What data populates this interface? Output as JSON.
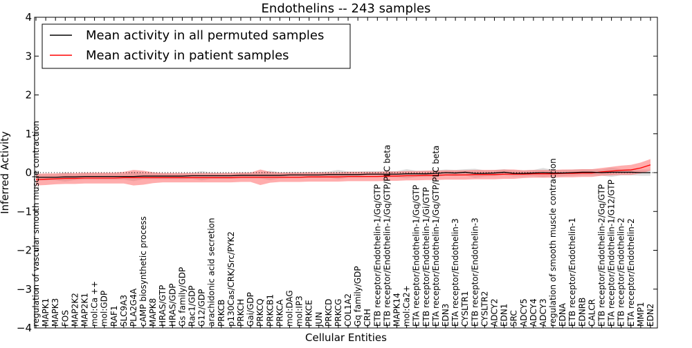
{
  "chart_data": {
    "type": "line",
    "title": "Endothelins -- 243 samples",
    "xlabel": "Cellular Entities",
    "ylabel": "Inferred Activity",
    "ylim": [
      -4,
      4
    ],
    "yticks": [
      "−4",
      "−3",
      "−2",
      "−1",
      "0",
      "1",
      "2",
      "3",
      "4"
    ],
    "grid": false,
    "legend_position": "top-left",
    "reference_line": 0,
    "categories": [
      "regulation of vascular smooth muscle contraction",
      "MAPK1",
      "MAPK3",
      "FOS",
      "MAP2K2",
      "MAP2K1",
      "mol:Ca ++",
      "mol:GDP",
      "RAF1",
      "SLC9A3",
      "PLA2G4A",
      "cAMP biosynthetic process",
      "MAPK8",
      "HRAS/GTP",
      "HRAS/GDP",
      "Gs family/GDP",
      "Rac1/GDP",
      "G12/GDP",
      "arachidonic acid secretion",
      "PRKCB",
      "p130Cas/CRK/Src/PYK2",
      "PRKCH",
      "Gai/GDP",
      "PRKCQ",
      "PRKCB1",
      "PRKCA",
      "mol:DAG",
      "mol:IP3",
      "PRKCE",
      "JUN",
      "PRKCD",
      "PRKCG",
      "COL1A2",
      "Gq family/GDP",
      "CRH",
      "ETB receptor/Endothelin-1/Gq/GTP",
      "ETB receptor/Endothelin-1/Gq/GTP/PLC beta",
      "MAPK14",
      "mol:Ca2+",
      "ETA receptor/Endothelin-1/Gq/GTP",
      "ETB receptor/Endothelin-1/Gi/GTP",
      "ETA receptor/Endothelin-1/Gq/GTP/PLC beta",
      "EDN3",
      "ETA receptor/Endothelin-3",
      "CYSLTR1",
      "ETB receptor/Endothelin-3",
      "CYSLTR2",
      "ADCY2",
      "EDN1",
      "SRC",
      "ADCY5",
      "ADCY4",
      "ADCY3",
      "regulation of smooth muscle contraction",
      "EDNA",
      "ETB receptor/Endothelin-1",
      "EDNRB",
      "CALCR",
      "ETB receptor/Endothelin-2/Gq/GTP",
      "ETA receptor/Endothelin-1/G12/GTP",
      "ETB receptor/Endothelin-2",
      "ETA receptor/Endothelin-2",
      "MMP1",
      "EDN2"
    ],
    "series": [
      {
        "name": "Mean activity in all permuted samples",
        "color": "#000000",
        "values": [
          -0.12,
          -0.12,
          -0.12,
          -0.11,
          -0.11,
          -0.1,
          -0.1,
          -0.1,
          -0.1,
          -0.1,
          -0.1,
          -0.09,
          -0.09,
          -0.09,
          -0.09,
          -0.09,
          -0.08,
          -0.08,
          -0.08,
          -0.08,
          -0.08,
          -0.07,
          -0.07,
          -0.07,
          -0.07,
          -0.07,
          -0.06,
          -0.06,
          -0.06,
          -0.06,
          -0.05,
          -0.05,
          -0.05,
          -0.05,
          -0.04,
          -0.04,
          -0.04,
          -0.04,
          -0.03,
          -0.03,
          -0.03,
          -0.02,
          0.0,
          -0.01,
          0.01,
          -0.02,
          -0.02,
          -0.01,
          0.01,
          -0.02,
          -0.02,
          -0.01,
          0.0,
          -0.01,
          -0.01,
          0.0,
          0.01,
          0.01,
          0.0,
          0.01,
          0.01,
          0.01,
          0.0,
          0.0
        ]
      },
      {
        "name": "Mean activity in patient samples",
        "color": "#ff0000",
        "band_color": "#ff6a6a",
        "values": [
          -0.18,
          -0.17,
          -0.16,
          -0.15,
          -0.15,
          -0.14,
          -0.14,
          -0.14,
          -0.14,
          -0.13,
          -0.13,
          -0.13,
          -0.13,
          -0.13,
          -0.13,
          -0.13,
          -0.13,
          -0.13,
          -0.13,
          -0.13,
          -0.13,
          -0.12,
          -0.12,
          -0.12,
          -0.12,
          -0.12,
          -0.12,
          -0.12,
          -0.11,
          -0.11,
          -0.11,
          -0.11,
          -0.1,
          -0.1,
          -0.1,
          -0.1,
          -0.09,
          -0.09,
          -0.08,
          -0.08,
          -0.07,
          -0.07,
          -0.06,
          -0.06,
          -0.06,
          -0.05,
          -0.05,
          -0.05,
          -0.04,
          -0.04,
          -0.04,
          -0.03,
          -0.03,
          -0.03,
          -0.02,
          -0.02,
          -0.01,
          -0.01,
          0.02,
          0.04,
          0.06,
          0.07,
          0.12,
          0.2
        ],
        "band_halfwidth": [
          0.15,
          0.15,
          0.14,
          0.14,
          0.14,
          0.14,
          0.14,
          0.14,
          0.14,
          0.15,
          0.2,
          0.18,
          0.14,
          0.12,
          0.12,
          0.12,
          0.12,
          0.12,
          0.12,
          0.12,
          0.12,
          0.12,
          0.12,
          0.2,
          0.14,
          0.12,
          0.12,
          0.12,
          0.12,
          0.12,
          0.12,
          0.12,
          0.12,
          0.12,
          0.12,
          0.12,
          0.12,
          0.12,
          0.12,
          0.12,
          0.12,
          0.12,
          0.12,
          0.12,
          0.12,
          0.12,
          0.12,
          0.12,
          0.12,
          0.12,
          0.1,
          0.1,
          0.1,
          0.1,
          0.1,
          0.1,
          0.1,
          0.1,
          0.1,
          0.11,
          0.12,
          0.13,
          0.14,
          0.15
        ]
      }
    ]
  }
}
